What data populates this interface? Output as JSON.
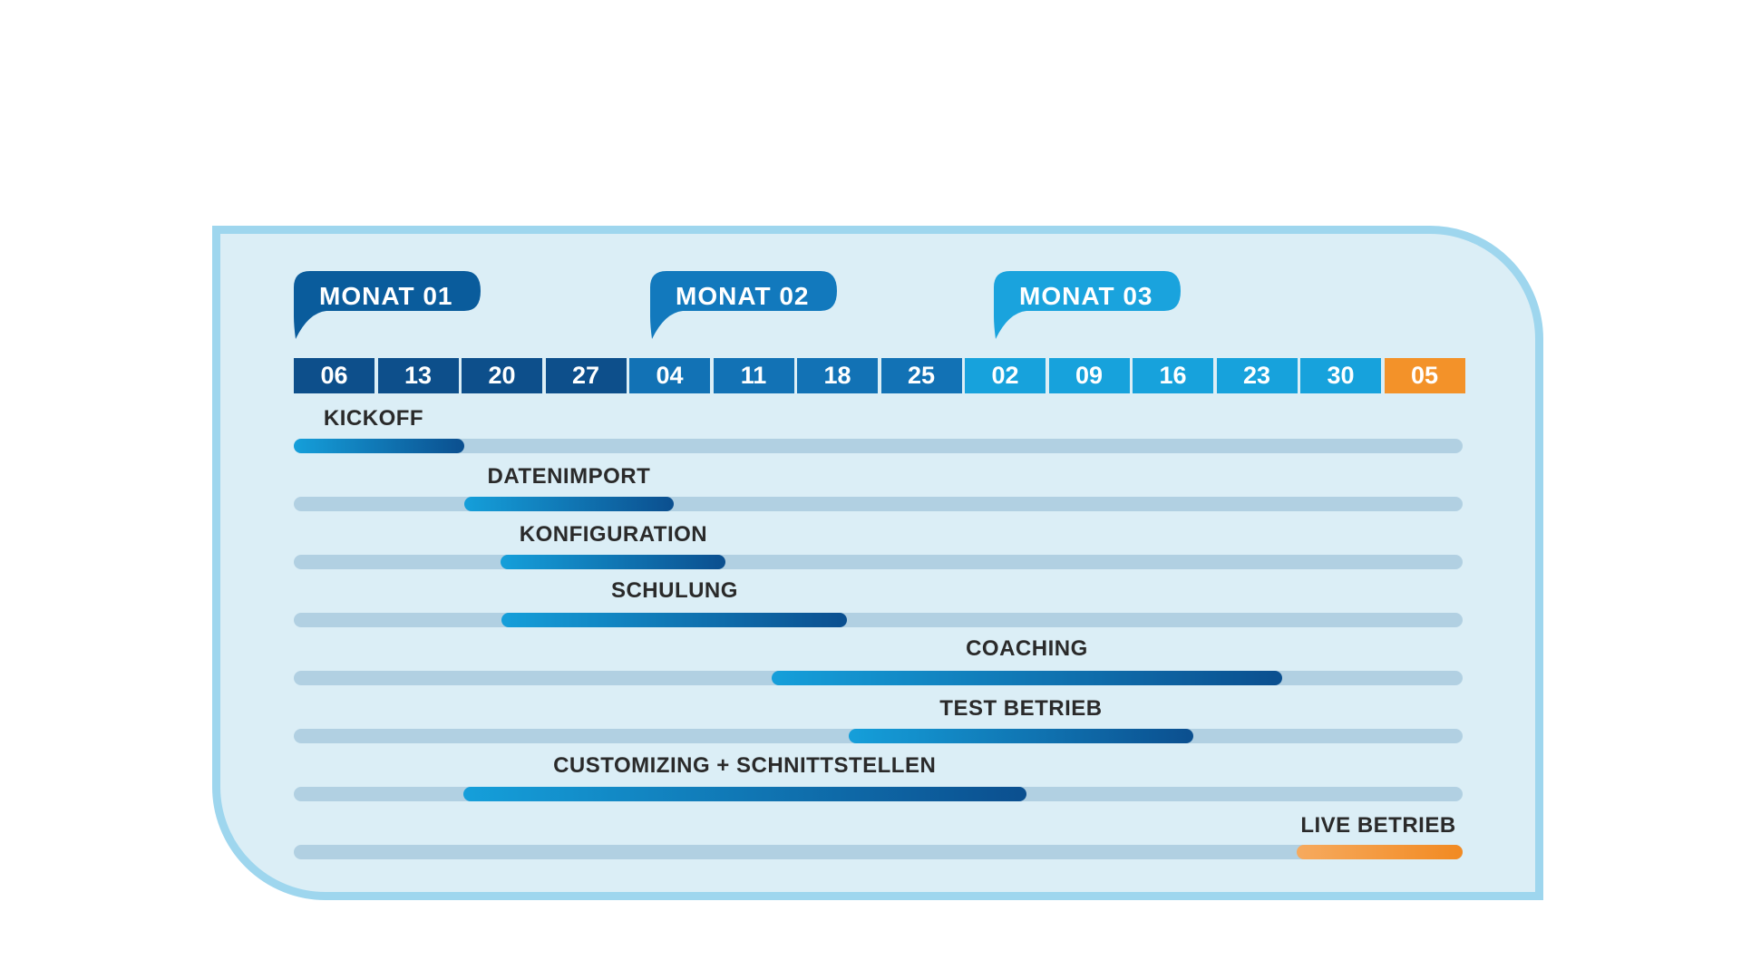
{
  "months": [
    {
      "label": "MONAT 01",
      "color": "#0a5c9c"
    },
    {
      "label": "MONAT 02",
      "color": "#1279bd"
    },
    {
      "label": "MONAT 03",
      "color": "#1aa3dd"
    }
  ],
  "weeks": [
    "06",
    "13",
    "20",
    "27",
    "04",
    "11",
    "18",
    "25",
    "02",
    "09",
    "16",
    "23",
    "30",
    "05"
  ],
  "week_colors": [
    "#0d4f8b",
    "#0d4f8b",
    "#0d4f8b",
    "#0d4f8b",
    "#1272b5",
    "#1272b5",
    "#1272b5",
    "#1272b5",
    "#17a2dc",
    "#17a2dc",
    "#17a2dc",
    "#17a2dc",
    "#17a2dc",
    "#f39229"
  ],
  "tasks": [
    {
      "label": "KICKOFF",
      "start": 0,
      "end": 2.03,
      "color": "blue"
    },
    {
      "label": "DATENIMPORT",
      "start": 2.03,
      "end": 4.53,
      "color": "blue"
    },
    {
      "label": "KONFIGURATION",
      "start": 2.47,
      "end": 5.15,
      "color": "blue"
    },
    {
      "label": "SCHULUNG",
      "start": 2.48,
      "end": 6.6,
      "color": "blue"
    },
    {
      "label": "COACHING",
      "start": 5.7,
      "end": 11.78,
      "color": "blue"
    },
    {
      "label": "TEST BETRIEB",
      "start": 6.62,
      "end": 10.72,
      "color": "blue"
    },
    {
      "label": "CUSTOMIZING + SCHNITTSTELLEN",
      "start": 2.02,
      "end": 8.73,
      "color": "blue"
    },
    {
      "label": "LIVE BETRIEB",
      "start": 11.96,
      "end": 13.95,
      "color": "orange"
    }
  ],
  "colors": {
    "track": "#b1d0e2",
    "bar_blue_light": "#159fda",
    "bar_blue_dark": "#0b4f8f",
    "bar_orange_light": "#f6aa5e",
    "bar_orange_dark": "#f28a22",
    "panel_fill": "#dbeef6",
    "panel_border": "#9ed6ee"
  }
}
